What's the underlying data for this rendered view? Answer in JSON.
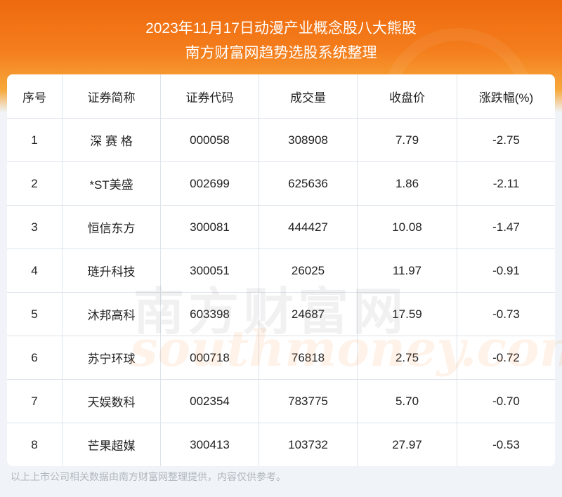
{
  "header": {
    "title": "2023年11月17日动漫产业概念股八大熊股",
    "subtitle": "南方财富网趋势选股系统整理"
  },
  "table": {
    "columns": [
      "序号",
      "证券简称",
      "证券代码",
      "成交量",
      "收盘价",
      "涨跌幅(%)"
    ],
    "rows": [
      [
        "1",
        "深 赛 格",
        "000058",
        "308908",
        "7.79",
        "-2.75"
      ],
      [
        "2",
        "*ST美盛",
        "002699",
        "625636",
        "1.86",
        "-2.11"
      ],
      [
        "3",
        "恒信东方",
        "300081",
        "444427",
        "10.08",
        "-1.47"
      ],
      [
        "4",
        "琏升科技",
        "300051",
        "26025",
        "11.97",
        "-0.91"
      ],
      [
        "5",
        "沐邦高科",
        "603398",
        "24687",
        "17.59",
        "-0.73"
      ],
      [
        "6",
        "苏宁环球",
        "000718",
        "76818",
        "2.75",
        "-0.72"
      ],
      [
        "7",
        "天娱数科",
        "002354",
        "783775",
        "5.70",
        "-0.70"
      ],
      [
        "8",
        "芒果超媒",
        "300413",
        "103732",
        "27.97",
        "-0.53"
      ]
    ]
  },
  "watermark": {
    "text_cn": "南方财富网",
    "text_en": "southmoney.com"
  },
  "footer": {
    "note": "以上上市公司相关数据由南方财富网整理提供，内容仅供参考。"
  },
  "colors": {
    "banner": "#f47d1c",
    "background": "#f0f4f8"
  }
}
